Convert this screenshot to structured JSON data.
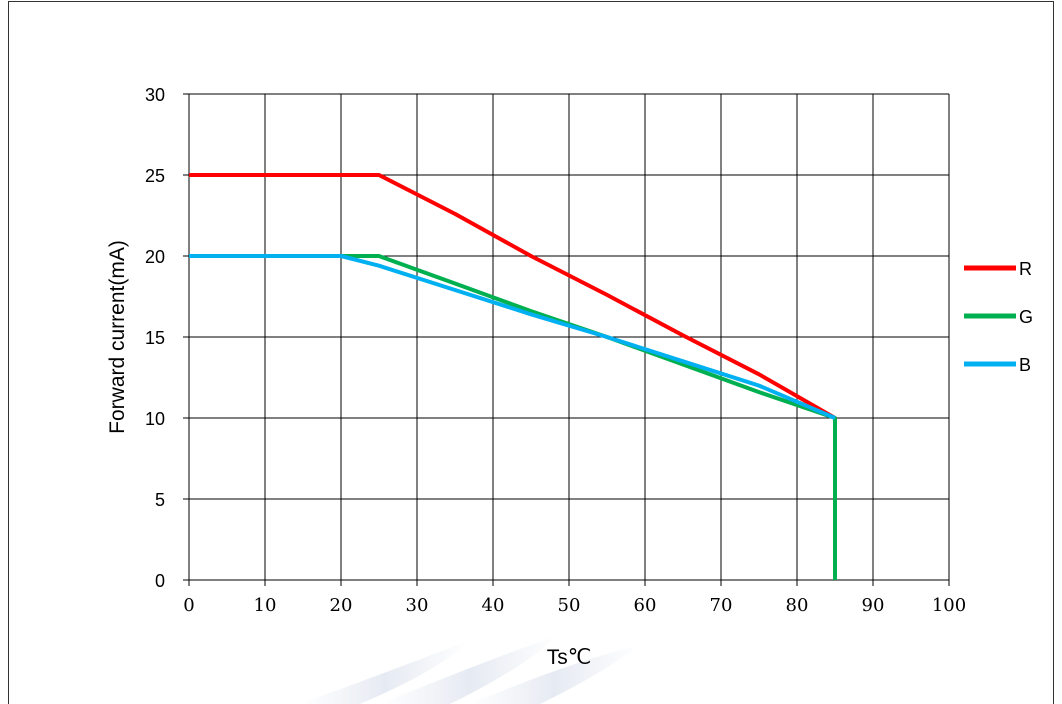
{
  "chart_data": {
    "type": "line",
    "xlabel": "Ts℃",
    "ylabel": "Forward current(mA)",
    "xlim": [
      0,
      100
    ],
    "ylim": [
      0,
      30
    ],
    "x_ticks": [
      "0",
      "10",
      "20",
      "30",
      "40",
      "50",
      "60",
      "70",
      "80",
      "90",
      "100"
    ],
    "y_ticks": [
      "0",
      "5",
      "10",
      "15",
      "20",
      "25",
      "30"
    ],
    "grid": true,
    "legend_position": "right",
    "series": [
      {
        "name": "R",
        "color": "#ff0000",
        "points": [
          [
            0,
            25
          ],
          [
            25,
            25
          ],
          [
            35,
            22.6
          ],
          [
            45,
            20
          ],
          [
            55,
            17.6
          ],
          [
            65,
            15.1
          ],
          [
            75,
            12.7
          ],
          [
            85,
            10
          ],
          [
            85,
            0
          ]
        ]
      },
      {
        "name": "G",
        "color": "#00b050",
        "points": [
          [
            0,
            20
          ],
          [
            25,
            20
          ],
          [
            35,
            18.3
          ],
          [
            45,
            16.6
          ],
          [
            55,
            15
          ],
          [
            65,
            13.3
          ],
          [
            75,
            11.6
          ],
          [
            85,
            10
          ],
          [
            85,
            0
          ]
        ]
      },
      {
        "name": "B",
        "color": "#00b0f0",
        "points": [
          [
            0,
            20
          ],
          [
            20,
            20
          ],
          [
            25,
            19.4
          ],
          [
            35,
            17.9
          ],
          [
            45,
            16.4
          ],
          [
            55,
            15
          ],
          [
            65,
            13.5
          ],
          [
            75,
            12
          ],
          [
            85,
            10
          ]
        ]
      }
    ]
  }
}
